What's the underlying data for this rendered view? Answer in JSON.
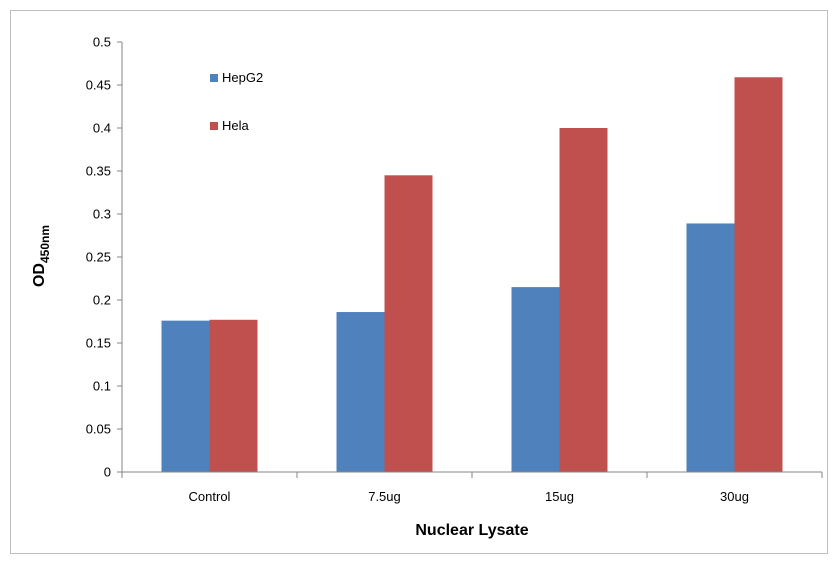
{
  "chart_data": {
    "type": "bar",
    "categories": [
      "Control",
      "7.5ug",
      "15ug",
      "30ug"
    ],
    "series": [
      {
        "name": "HepG2",
        "values": [
          0.176,
          0.186,
          0.215,
          0.289
        ],
        "color": "#4f81bd"
      },
      {
        "name": "Hela",
        "values": [
          0.177,
          0.345,
          0.4,
          0.459
        ],
        "color": "#c0504d"
      }
    ],
    "title": "",
    "xlabel": "Nuclear Lysate",
    "ylabel": {
      "main": "OD",
      "subscript": "450nm"
    },
    "ylim": [
      0,
      0.5
    ],
    "yticks": [
      "0",
      "0.05",
      "0.1",
      "0.15",
      "0.2",
      "0.25",
      "0.3",
      "0.35",
      "0.4",
      "0.45",
      "0.5"
    ],
    "grid": false,
    "legend_position": "top-left inside plot"
  }
}
